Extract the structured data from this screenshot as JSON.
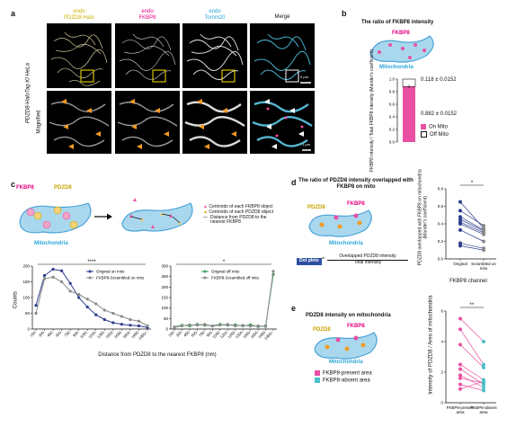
{
  "panels": {
    "a": "a",
    "b": "b",
    "c": "c",
    "d": "d",
    "e": "e"
  },
  "colors": {
    "yellow": "#c9b400",
    "magenta": "#e6007e",
    "cyan": "#2aa6d6",
    "pink": "#e94fa3",
    "mito": "#a9d8ee",
    "mito_edge": "#4aa3d8",
    "navy": "#2e3e8c",
    "gray": "#8a8a8a",
    "green": "#3a9a5b",
    "orange": "#f39a24",
    "teal": "#4bc1c9"
  },
  "a": {
    "col_headers": [
      {
        "line1": "endo",
        "line2": "PDZD8-Halo",
        "color": "#c9b400"
      },
      {
        "line1": "endo",
        "line2": "FKBP8",
        "color": "#e6007e"
      },
      {
        "line1": "endo",
        "line2": "Tomm20",
        "color": "#2aa6d6"
      },
      {
        "line1": "",
        "line2": "Merge",
        "color": "#111111"
      }
    ],
    "row_label": "PDZD8-HaloTag KI HeLa",
    "magnified_label": "Magnified",
    "scale1": "5 µm",
    "scale2": "1 µm"
  },
  "b": {
    "title": "The ratio of FKBP8 intensity",
    "fkbp8": "FKBP8",
    "mito": "Mitochondria",
    "ylabel": "FKBP8 intensity / Total FKBP8 intensity (Mander's coefficient)",
    "yticks": [
      "0.0",
      "0.2",
      "0.4",
      "0.6",
      "0.8",
      "1.0"
    ],
    "on_mito": "0.882 ± 0.0152",
    "off_mito": "0.118 ± 0.0152",
    "legend": [
      "On Mito",
      "Off Mito"
    ]
  },
  "c": {
    "top": {
      "fkbp8": "FKBP8",
      "pdzd8": "PDZD8",
      "mito": "Mitochondria",
      "legend": [
        "Centroids of each FKBP8 object",
        "Centroids of each PDZD8 object",
        "Distance from PDZD8 to the nearest FKBP8"
      ]
    },
    "left_sig": "****",
    "right_sig": "*",
    "ylabel": "Counts",
    "xlabel": "Distance from PDZD8 to the nearest FKBP8 (nm)"
  },
  "chart_data": [
    {
      "type": "line",
      "ylabel": "Counts",
      "categories": [
        "150",
        "300",
        "450",
        "600",
        "750",
        "900",
        "1050",
        "1200",
        "1350",
        "1500",
        "1650",
        "1800",
        "1950",
        "1950<"
      ],
      "ylim": [
        0,
        200
      ],
      "yticks": [
        "0",
        "50",
        "100",
        "150",
        "200"
      ],
      "series": [
        {
          "name": "Original on mito",
          "values": [
            75,
            170,
            190,
            185,
            145,
            100,
            70,
            45,
            30,
            20,
            15,
            12,
            10,
            5
          ]
        },
        {
          "name": "FKBP8-Scrambled on mito",
          "values": [
            50,
            160,
            165,
            150,
            120,
            110,
            95,
            80,
            60,
            50,
            40,
            30,
            25,
            10
          ]
        }
      ]
    },
    {
      "type": "line",
      "categories": [
        "150",
        "300",
        "450",
        "600",
        "750",
        "900",
        "1050",
        "1200",
        "1350",
        "1500",
        "1650",
        "1800",
        "1950",
        "1950<"
      ],
      "ylim": [
        0,
        300
      ],
      "yticks": [
        "0",
        "50",
        "100",
        "150",
        "200",
        "250",
        "300"
      ],
      "series": [
        {
          "name": "Original off mito",
          "values": [
            10,
            18,
            15,
            22,
            18,
            15,
            22,
            18,
            20,
            15,
            20,
            12,
            15,
            260
          ]
        },
        {
          "name": "FKBP8-Scrambled off mito",
          "values": [
            8,
            15,
            20,
            18,
            22,
            14,
            18,
            22,
            15,
            18,
            14,
            15,
            12,
            275
          ]
        }
      ]
    },
    {
      "type": "line",
      "ylabel": "PDZD8 overlapped with FKBP8 on mitochondria (Mander's coefficient)",
      "categories": [
        "Original",
        "Scrambled on mito"
      ],
      "ylim": [
        0,
        0.8
      ],
      "yticks": [
        "0.0",
        "0.2",
        "0.4",
        "0.6",
        "0.8"
      ],
      "series": [
        {
          "values": [
            0.65,
            0.35
          ]
        },
        {
          "values": [
            0.55,
            0.38
          ]
        },
        {
          "values": [
            0.48,
            0.33
          ]
        },
        {
          "values": [
            0.45,
            0.32
          ]
        },
        {
          "values": [
            0.42,
            0.3
          ]
        },
        {
          "values": [
            0.4,
            0.28
          ]
        },
        {
          "values": [
            0.33,
            0.2
          ]
        },
        {
          "values": [
            0.18,
            0.12
          ]
        },
        {
          "values": [
            0.15,
            0.1
          ]
        }
      ]
    },
    {
      "type": "line",
      "ylabel": "Intensity of PDZD8 / Area of mitochondria",
      "categories": [
        "FKBP8-present area",
        "FKBP8-absent area"
      ],
      "ylim": [
        0,
        6
      ],
      "yticks": [
        "0",
        "2",
        "4",
        "6"
      ],
      "series": [
        {
          "values": [
            5.5,
            4.0
          ]
        },
        {
          "values": [
            4.8,
            2.5
          ]
        },
        {
          "values": [
            3.8,
            2.3
          ]
        },
        {
          "values": [
            2.5,
            1.5
          ]
        },
        {
          "values": [
            2.2,
            1.2
          ]
        },
        {
          "values": [
            1.8,
            1.0
          ]
        },
        {
          "values": [
            1.6,
            1.3
          ]
        },
        {
          "values": [
            1.2,
            0.8
          ]
        },
        {
          "values": [
            0.9,
            1.4
          ]
        }
      ]
    }
  ],
  "d": {
    "title": "The ratio of PDZD8 intensity overlapped with FKBP8 on mito",
    "pdzd8": "PDZD8",
    "fkbp8": "FKBP8",
    "mito": "Mitochondria",
    "formula_box": "Dot plots",
    "formula_top": "Overlapped PDZD8 intensity",
    "formula_bottom": "Total intensity",
    "sig": "*",
    "bracket": "FKBP8 channel"
  },
  "e": {
    "title": "PDZD8 intensity on mitochondria",
    "pdzd8": "PDZD8",
    "fkbp8": "FKBP8",
    "mito": "Mitochondria",
    "legend": [
      "FKBP8-present area",
      "FKBP8-absent area"
    ],
    "sig": "**"
  }
}
